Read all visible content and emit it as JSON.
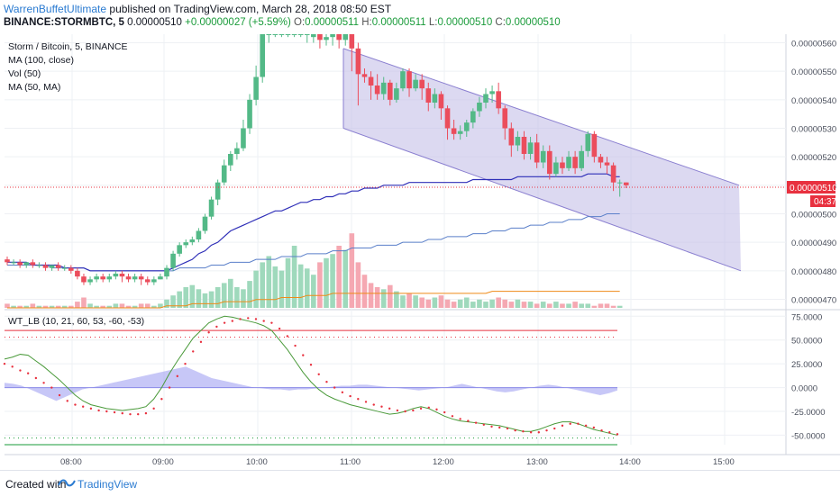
{
  "header": {
    "author": "WarrenBuffetUltimate",
    "published": "published on TradingView.com, March 28, 2018 08:50 EST",
    "symbol": "BINANCE:STORMBTC, 5",
    "open_label": "0.00000510",
    "change": "+0.00000027 (+5.59%)",
    "o_val": "0.00000511",
    "h_val": "0.00000511",
    "l_val": "0.00000510",
    "c_val": "0.00000510"
  },
  "legend": {
    "title": "Storm / Bitcoin, 5, BINANCE",
    "ma1": "MA (100, close)",
    "vol": "Vol (50)",
    "ma2": "MA (50, MA)"
  },
  "osc_legend": "WT_LB (10, 21, 60, 53, -60, -53)",
  "price_tag": "0.00000510",
  "time_tag": "04:37",
  "footer": {
    "created": "Created with",
    "brand": "TradingView"
  },
  "colors": {
    "up": "#53b987",
    "down": "#eb4d5c",
    "channel_fill": "#c5c0e8",
    "channel_line": "#8a7fd0",
    "ma100": "#2f2fb8",
    "ma_slow": "#5a7fc9",
    "osc_line": "#4a9a3a",
    "osc_dots": "#e8313f",
    "osc_area": "#9999f0",
    "vol_up": "#9fd9bc",
    "vol_down": "#f5a8b2",
    "vol_ma": "#ef8a17"
  },
  "chart_data": {
    "type": "candlestick",
    "price_axis": {
      "ticks": [
        "0.00000560",
        "0.00000550",
        "0.00000540",
        "0.00000530",
        "0.00000520",
        "0.00000510",
        "0.00000500",
        "0.00000490",
        "0.00000480",
        "0.00000470"
      ],
      "range": [
        4.67e-06,
        5.63e-06
      ]
    },
    "time_axis": {
      "ticks": [
        "08:00",
        "09:00",
        "10:00",
        "11:00",
        "12:00",
        "13:00",
        "14:00",
        "15:00"
      ]
    },
    "osc_axis": {
      "ticks": [
        "75.0000",
        "50.0000",
        "25.0000",
        "0.0000",
        "-25.0000",
        "-50.0000"
      ],
      "range": [
        -60,
        80
      ]
    },
    "candles": [
      [
        484,
        483,
        485,
        482
      ],
      [
        483,
        483,
        484,
        482
      ],
      [
        483,
        482,
        484,
        481
      ],
      [
        482,
        483,
        483,
        481
      ],
      [
        483,
        482,
        484,
        481
      ],
      [
        482,
        482,
        483,
        481
      ],
      [
        482,
        481,
        483,
        480
      ],
      [
        481,
        482,
        482,
        480
      ],
      [
        482,
        481,
        483,
        480
      ],
      [
        481,
        481,
        482,
        480
      ],
      [
        481,
        480,
        482,
        479
      ],
      [
        480,
        478,
        481,
        477
      ],
      [
        478,
        476,
        479,
        475
      ],
      [
        476,
        477,
        478,
        475
      ],
      [
        477,
        478,
        479,
        476
      ],
      [
        478,
        477,
        479,
        476
      ],
      [
        477,
        478,
        479,
        476
      ],
      [
        478,
        479,
        480,
        477
      ],
      [
        479,
        478,
        480,
        476
      ],
      [
        478,
        477,
        479,
        476
      ],
      [
        477,
        478,
        479,
        476
      ],
      [
        478,
        477,
        479,
        475
      ],
      [
        477,
        476,
        478,
        475
      ],
      [
        476,
        477,
        478,
        475
      ],
      [
        477,
        478,
        479,
        477
      ],
      [
        478,
        481,
        482,
        477
      ],
      [
        481,
        486,
        487,
        480
      ],
      [
        486,
        489,
        490,
        485
      ],
      [
        489,
        490,
        491,
        488
      ],
      [
        490,
        491,
        492,
        489
      ],
      [
        491,
        494,
        495,
        490
      ],
      [
        494,
        499,
        500,
        493
      ],
      [
        499,
        505,
        506,
        498
      ],
      [
        505,
        511,
        512,
        503
      ],
      [
        511,
        517,
        519,
        510
      ],
      [
        517,
        521,
        522,
        515
      ],
      [
        521,
        523,
        525,
        519
      ],
      [
        523,
        530,
        533,
        522
      ],
      [
        530,
        540,
        542,
        528
      ],
      [
        540,
        548,
        552,
        538
      ],
      [
        548,
        563,
        563,
        546
      ],
      [
        563,
        563,
        563,
        560
      ],
      [
        563,
        563,
        563,
        562
      ],
      [
        563,
        563,
        563,
        562
      ],
      [
        563,
        563,
        563,
        562
      ],
      [
        563,
        563,
        563,
        562
      ],
      [
        563,
        563,
        563,
        562
      ],
      [
        563,
        563,
        563,
        560
      ],
      [
        562,
        563,
        563,
        560
      ],
      [
        563,
        561,
        563,
        558
      ],
      [
        561,
        562,
        563,
        559
      ],
      [
        562,
        563,
        563,
        559
      ],
      [
        563,
        561,
        563,
        558
      ],
      [
        561,
        563,
        563,
        559
      ],
      [
        563,
        558,
        563,
        550
      ],
      [
        558,
        549,
        560,
        538
      ],
      [
        549,
        548,
        551,
        546
      ],
      [
        548,
        545,
        550,
        540
      ],
      [
        545,
        542,
        549,
        540
      ],
      [
        542,
        546,
        548,
        540
      ],
      [
        546,
        540,
        547,
        538
      ],
      [
        540,
        544,
        546,
        539
      ],
      [
        544,
        550,
        551,
        543
      ],
      [
        550,
        544,
        551,
        541
      ],
      [
        544,
        547,
        549,
        543
      ],
      [
        547,
        544,
        549,
        540
      ],
      [
        544,
        539,
        546,
        536
      ],
      [
        539,
        542,
        544,
        537
      ],
      [
        542,
        537,
        543,
        533
      ],
      [
        537,
        530,
        538,
        526
      ],
      [
        530,
        528,
        533,
        526
      ],
      [
        528,
        529,
        531,
        526
      ],
      [
        529,
        532,
        533,
        527
      ],
      [
        532,
        536,
        537,
        530
      ],
      [
        536,
        539,
        541,
        534
      ],
      [
        539,
        542,
        544,
        537
      ],
      [
        542,
        543,
        545,
        539
      ],
      [
        543,
        537,
        546,
        535
      ],
      [
        537,
        530,
        538,
        526
      ],
      [
        530,
        524,
        532,
        520
      ],
      [
        524,
        527,
        529,
        522
      ],
      [
        527,
        521,
        529,
        519
      ],
      [
        521,
        525,
        527,
        519
      ],
      [
        525,
        518,
        528,
        516
      ],
      [
        518,
        522,
        524,
        516
      ],
      [
        522,
        514,
        524,
        512
      ],
      [
        514,
        518,
        520,
        513
      ],
      [
        518,
        516,
        520,
        514
      ],
      [
        516,
        520,
        522,
        515
      ],
      [
        520,
        516,
        522,
        514
      ],
      [
        516,
        522,
        524,
        515
      ],
      [
        522,
        528,
        529,
        520
      ],
      [
        528,
        520,
        529,
        518
      ],
      [
        520,
        518,
        521,
        516
      ],
      [
        518,
        517,
        520,
        514
      ],
      [
        517,
        511,
        518,
        508
      ],
      [
        511,
        511,
        512,
        506
      ],
      [
        511,
        510,
        511,
        509
      ]
    ],
    "volumes": [
      2,
      1,
      1,
      1,
      2,
      1,
      1,
      1,
      1,
      1,
      1,
      3,
      5,
      2,
      1,
      1,
      1,
      2,
      2,
      1,
      1,
      2,
      2,
      1,
      2,
      4,
      6,
      8,
      10,
      11,
      9,
      7,
      8,
      10,
      12,
      14,
      10,
      9,
      13,
      18,
      22,
      25,
      20,
      18,
      24,
      30,
      21,
      19,
      16,
      22,
      24,
      26,
      30,
      28,
      36,
      22,
      16,
      12,
      10,
      9,
      11,
      8,
      6,
      7,
      6,
      5,
      4,
      5,
      6,
      4,
      3,
      4,
      5,
      3,
      4,
      3,
      4,
      5,
      4,
      3,
      4,
      3,
      3,
      2,
      3,
      2,
      3,
      2,
      2,
      3,
      2,
      2,
      1,
      2,
      2,
      1,
      1
    ],
    "ma100": [
      483,
      483,
      483,
      483,
      482,
      482,
      482,
      482,
      482,
      481,
      481,
      481,
      481,
      480,
      480,
      480,
      480,
      480,
      480,
      480,
      480,
      480,
      480,
      480,
      480,
      480,
      481,
      482,
      483,
      484,
      486,
      487,
      489,
      490,
      492,
      494,
      495,
      496,
      497,
      498,
      499,
      500,
      501,
      501,
      502,
      503,
      504,
      504,
      505,
      505,
      506,
      506,
      507,
      507,
      508,
      508,
      509,
      509,
      509,
      510,
      510,
      510,
      510,
      511,
      511,
      511,
      511,
      511,
      511,
      511,
      511,
      511,
      511,
      512,
      512,
      512,
      512,
      512,
      512,
      512,
      513,
      513,
      513,
      513,
      513,
      513,
      513,
      513,
      513,
      513,
      513,
      514,
      514,
      514,
      514,
      513,
      513
    ],
    "ma_slow": [
      482,
      482,
      482,
      482,
      482,
      482,
      482,
      481,
      481,
      481,
      481,
      481,
      481,
      480,
      480,
      480,
      480,
      480,
      480,
      480,
      480,
      480,
      480,
      480,
      480,
      480,
      480,
      481,
      481,
      481,
      481,
      481,
      482,
      482,
      482,
      483,
      483,
      483,
      483,
      484,
      484,
      484,
      484,
      485,
      485,
      485,
      485,
      486,
      486,
      486,
      486,
      487,
      487,
      487,
      488,
      488,
      488,
      488,
      489,
      489,
      489,
      489,
      490,
      490,
      490,
      490,
      491,
      491,
      491,
      492,
      492,
      492,
      492,
      493,
      493,
      493,
      494,
      494,
      494,
      495,
      495,
      495,
      496,
      496,
      496,
      497,
      497,
      497,
      498,
      498,
      498,
      499,
      499,
      499,
      500,
      500,
      500
    ],
    "vol_ma": [
      0,
      0,
      0,
      0,
      0,
      0,
      0,
      0,
      0,
      0,
      0,
      0,
      0,
      0,
      0,
      0,
      0,
      0,
      0,
      0,
      0,
      0,
      0,
      0,
      0,
      1,
      1,
      1,
      1,
      2,
      2,
      2,
      2,
      2,
      3,
      3,
      3,
      3,
      3,
      4,
      4,
      4,
      4,
      5,
      5,
      5,
      5,
      6,
      6,
      6,
      6,
      7,
      7,
      7,
      7,
      7,
      7,
      7,
      7,
      7,
      7,
      7,
      7,
      7,
      7,
      7,
      7,
      7,
      7,
      7,
      7,
      7,
      7,
      7,
      7,
      7,
      8,
      8,
      8,
      8,
      8,
      8,
      8,
      8,
      8,
      8,
      8,
      8,
      8,
      8,
      8,
      8,
      8,
      8,
      8,
      8,
      8
    ],
    "channel": {
      "upper": [
        [
          381,
          5.58e-06
        ],
        [
          820,
          5.1e-06
        ]
      ],
      "lower": [
        [
          381,
          5.3e-06
        ],
        [
          822,
          4.8e-06
        ]
      ]
    },
    "osc_line": [
      30,
      32,
      35,
      34,
      28,
      22,
      15,
      8,
      0,
      -8,
      -14,
      -18,
      -20,
      -22,
      -23,
      -24,
      -23,
      -22,
      -20,
      -12,
      0,
      15,
      28,
      40,
      52,
      60,
      68,
      72,
      75,
      74,
      72,
      70,
      68,
      65,
      60,
      50,
      40,
      28,
      16,
      6,
      -2,
      -8,
      -12,
      -15,
      -18,
      -20,
      -22,
      -24,
      -26,
      -28,
      -27,
      -25,
      -22,
      -20,
      -22,
      -26,
      -30,
      -33,
      -35,
      -36,
      -37,
      -38,
      -39,
      -40,
      -42,
      -44,
      -46,
      -46,
      -44,
      -41,
      -38,
      -36,
      -36,
      -38,
      -41,
      -44,
      -46,
      -48,
      -50
    ],
    "osc_dots": [
      25,
      22,
      18,
      15,
      10,
      5,
      0,
      -8,
      -14,
      -18,
      -20,
      -22,
      -24,
      -25,
      -26,
      -27,
      -28,
      -28,
      -27,
      -22,
      -12,
      0,
      12,
      25,
      38,
      48,
      58,
      64,
      68,
      70,
      72,
      73,
      72,
      70,
      68,
      62,
      54,
      44,
      34,
      24,
      14,
      6,
      0,
      -5,
      -9,
      -12,
      -15,
      -18,
      -20,
      -22,
      -24,
      -25,
      -24,
      -22,
      -21,
      -23,
      -26,
      -30,
      -33,
      -35,
      -37,
      -39,
      -41,
      -42,
      -43,
      -45,
      -46,
      -47,
      -47,
      -45,
      -43,
      -40,
      -38,
      -38,
      -40,
      -42,
      -45,
      -47,
      -49
    ],
    "osc_area": [
      5,
      4,
      2,
      -2,
      -6,
      -10,
      -14,
      -10,
      -6,
      -2,
      0,
      2,
      4,
      6,
      8,
      10,
      12,
      14,
      16,
      18,
      20,
      22,
      18,
      14,
      10,
      8,
      6,
      4,
      2,
      0,
      -1,
      -2,
      -2,
      -3,
      -2,
      -2,
      -1,
      0,
      1,
      2,
      2,
      3,
      3,
      2,
      1,
      0,
      -1,
      -2,
      -3,
      -2,
      -1,
      0,
      2,
      4,
      2,
      0,
      -2,
      -4,
      -5,
      -4,
      -2,
      0,
      2,
      3,
      2,
      0,
      -2,
      -4,
      -6,
      -8,
      -6,
      -3
    ]
  }
}
